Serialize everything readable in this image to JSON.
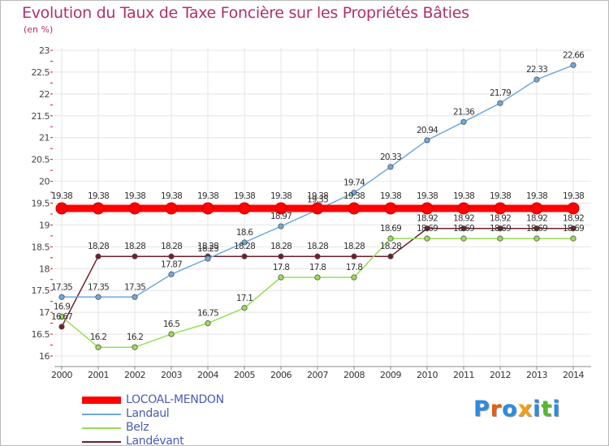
{
  "header": {
    "title": "Evolution du Taux de Taxe Foncière sur les Propriétés Bâties",
    "unit": "(en %)"
  },
  "logo": {
    "letters": [
      "P",
      "r",
      "o",
      "x",
      "i",
      "t",
      "i"
    ],
    "colors": [
      "#2e8be0",
      "#e25f16",
      "#2e8be0",
      "#f0a018",
      "#2e8be0",
      "#57b631",
      "#2e8be0"
    ]
  },
  "chart_data": {
    "type": "line",
    "title": "Evolution du Taux de Taxe Foncière sur les Propriétés Bâties",
    "ylabel": "(en %)",
    "xlabel": "",
    "ylim": [
      16,
      23
    ],
    "yticks": [
      "16",
      "16.5",
      "17",
      "17.5",
      "18",
      "18.5",
      "19",
      "19.5",
      "20",
      "20.5",
      "21",
      "21.5",
      "22",
      "22.5",
      "23"
    ],
    "ytick_values": [
      16,
      16.5,
      17,
      17.5,
      18,
      18.5,
      19,
      19.5,
      20,
      20.5,
      21,
      21.5,
      22,
      22.5,
      23
    ],
    "categories": [
      "2000",
      "2001",
      "2002",
      "2003",
      "2004",
      "2005",
      "2006",
      "2007",
      "2008",
      "2009",
      "2010",
      "2011",
      "2012",
      "2013",
      "2014"
    ],
    "grid": true,
    "legend_position": "bottom-left",
    "series": [
      {
        "name": "Landévant",
        "color": "#6e1f28",
        "values": [
          16.67,
          18.28,
          18.28,
          18.28,
          18.28,
          18.28,
          18.28,
          18.28,
          18.28,
          18.28,
          18.92,
          18.92,
          18.92,
          18.92,
          18.92
        ],
        "labels": [
          "16.67",
          "18.28",
          "18.28",
          "18.28",
          "18.28",
          "18.28",
          "18.28",
          "18.28",
          "18.28",
          "18.28",
          "18.92",
          "18.92",
          "18.92",
          "18.92",
          "18.92"
        ]
      },
      {
        "name": "Belz",
        "color": "#99dd55",
        "values": [
          16.9,
          16.2,
          16.2,
          16.5,
          16.75,
          17.1,
          17.8,
          17.8,
          17.8,
          18.69,
          18.69,
          18.69,
          18.69,
          18.69,
          18.69
        ],
        "labels": [
          "16.9",
          "16.2",
          "16.2",
          "16.5",
          "16.75",
          "17.1",
          "17.8",
          "17.8",
          "17.8",
          "18.69",
          "18.69",
          "18.69",
          "18.69",
          "18.69",
          "18.69"
        ]
      },
      {
        "name": "Landaul",
        "color": "#6fa8dc",
        "values": [
          17.35,
          17.35,
          17.35,
          17.87,
          18.23,
          18.6,
          18.97,
          19.35,
          19.74,
          20.33,
          20.94,
          21.36,
          21.79,
          22.33,
          22.66
        ],
        "labels": [
          "17.35",
          "17.35",
          "17.35",
          "17.87",
          "18.23",
          "18.6",
          "18.97",
          "19.35",
          "19.74",
          "20.33",
          "20.94",
          "21.36",
          "21.79",
          "22.33",
          "22.66"
        ]
      },
      {
        "name": "LOCOAL-MENDON",
        "color": "#ff0000",
        "values": [
          19.38,
          19.38,
          19.38,
          19.38,
          19.38,
          19.38,
          19.38,
          19.38,
          19.38,
          19.38,
          19.38,
          19.38,
          19.38,
          19.38,
          19.38
        ],
        "labels": [
          "19.38",
          "19.38",
          "19.38",
          "19.38",
          "19.38",
          "19.38",
          "19.38",
          "19.38",
          "19.38",
          "19.38",
          "19.38",
          "19.38",
          "19.38",
          "19.38",
          "19.38"
        ]
      }
    ]
  },
  "legend": [
    {
      "name": "LOCOAL-MENDON",
      "color": "#ff0000"
    },
    {
      "name": "Landaul",
      "color": "#6fa8dc"
    },
    {
      "name": "Belz",
      "color": "#99dd55"
    },
    {
      "name": "Landévant",
      "color": "#6e1f28"
    }
  ]
}
